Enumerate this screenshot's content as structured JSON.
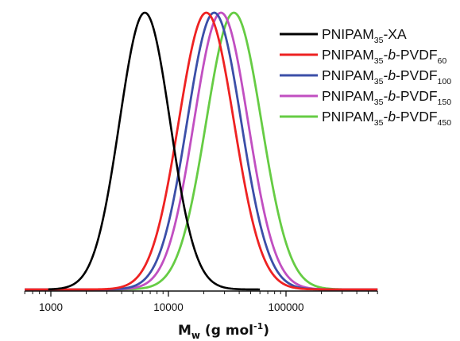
{
  "chart_data": {
    "type": "line",
    "xlabel": "M",
    "xlabel_sub": "w",
    "xlabel_unit_pre": " (g mol",
    "xlabel_unit_sup": "-1",
    "xlabel_unit_post": ")",
    "x_scale": "log",
    "xlim": [
      600,
      600000
    ],
    "x_ticks": [
      1000,
      10000,
      100000
    ],
    "x_tick_labels": [
      "1000",
      "10000",
      "100000"
    ],
    "ylim": [
      0,
      1
    ],
    "y_axis_visible": false,
    "grid": false,
    "legend_position": "top-right",
    "series": [
      {
        "name": "PNIPAM35-XA",
        "legend_parts": [
          {
            "t": "PNIPAM",
            "s": "n"
          },
          {
            "t": "35",
            "s": "sub"
          },
          {
            "t": "-XA",
            "s": "n"
          }
        ],
        "color": "#000000",
        "peak_mw": 6300,
        "log_width": 0.215,
        "x_start": 950,
        "x_end": 60000
      },
      {
        "name": "PNIPAM35-b-PVDF60",
        "legend_parts": [
          {
            "t": "PNIPAM",
            "s": "n"
          },
          {
            "t": "35",
            "s": "sub"
          },
          {
            "t": "-",
            "s": "n"
          },
          {
            "t": "b",
            "s": "i"
          },
          {
            "t": "-PVDF",
            "s": "n"
          },
          {
            "t": "60",
            "s": "sub"
          }
        ],
        "color": "#ee2222",
        "peak_mw": 21000,
        "log_width": 0.235,
        "x_start": 600,
        "x_end": 600000
      },
      {
        "name": "PNIPAM35-b-PVDF100",
        "legend_parts": [
          {
            "t": "PNIPAM",
            "s": "n"
          },
          {
            "t": "35",
            "s": "sub"
          },
          {
            "t": "-",
            "s": "n"
          },
          {
            "t": "b",
            "s": "i"
          },
          {
            "t": "-PVDF",
            "s": "n"
          },
          {
            "t": "100",
            "s": "sub"
          }
        ],
        "color": "#3b4fa8",
        "peak_mw": 24500,
        "log_width": 0.23,
        "x_start": 600,
        "x_end": 600000
      },
      {
        "name": "PNIPAM35-b-PVDF150",
        "legend_parts": [
          {
            "t": "PNIPAM",
            "s": "n"
          },
          {
            "t": "35",
            "s": "sub"
          },
          {
            "t": "-",
            "s": "n"
          },
          {
            "t": "b",
            "s": "i"
          },
          {
            "t": "-PVDF",
            "s": "n"
          },
          {
            "t": "150",
            "s": "sub"
          }
        ],
        "color": "#c14fc1",
        "peak_mw": 28000,
        "log_width": 0.23,
        "x_start": 600,
        "x_end": 600000
      },
      {
        "name": "PNIPAM35-b-PVDF450",
        "legend_parts": [
          {
            "t": "PNIPAM",
            "s": "n"
          },
          {
            "t": "35",
            "s": "sub"
          },
          {
            "t": "-",
            "s": "n"
          },
          {
            "t": "b",
            "s": "i"
          },
          {
            "t": "-PVDF",
            "s": "n"
          },
          {
            "t": "450",
            "s": "sub"
          }
        ],
        "color": "#66cc44",
        "peak_mw": 36000,
        "log_width": 0.235,
        "x_start": 600,
        "x_end": 600000
      }
    ]
  }
}
